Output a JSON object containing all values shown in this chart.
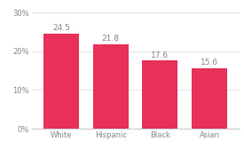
{
  "categories": [
    "White",
    "Hispanic",
    "Black",
    "Asian"
  ],
  "values": [
    24.5,
    21.8,
    17.6,
    15.6
  ],
  "bar_color": "#E8305A",
  "ylim": [
    0,
    30
  ],
  "yticks": [
    0,
    10,
    20,
    30
  ],
  "ytick_labels": [
    "0%",
    "10%",
    "20%",
    "30%"
  ],
  "value_label_fontsize": 6.5,
  "tick_fontsize": 6,
  "background_color": "#ffffff",
  "bar_width": 0.72,
  "label_color": "#888888",
  "grid_color": "#e0e0e0",
  "spine_color": "#cccccc"
}
